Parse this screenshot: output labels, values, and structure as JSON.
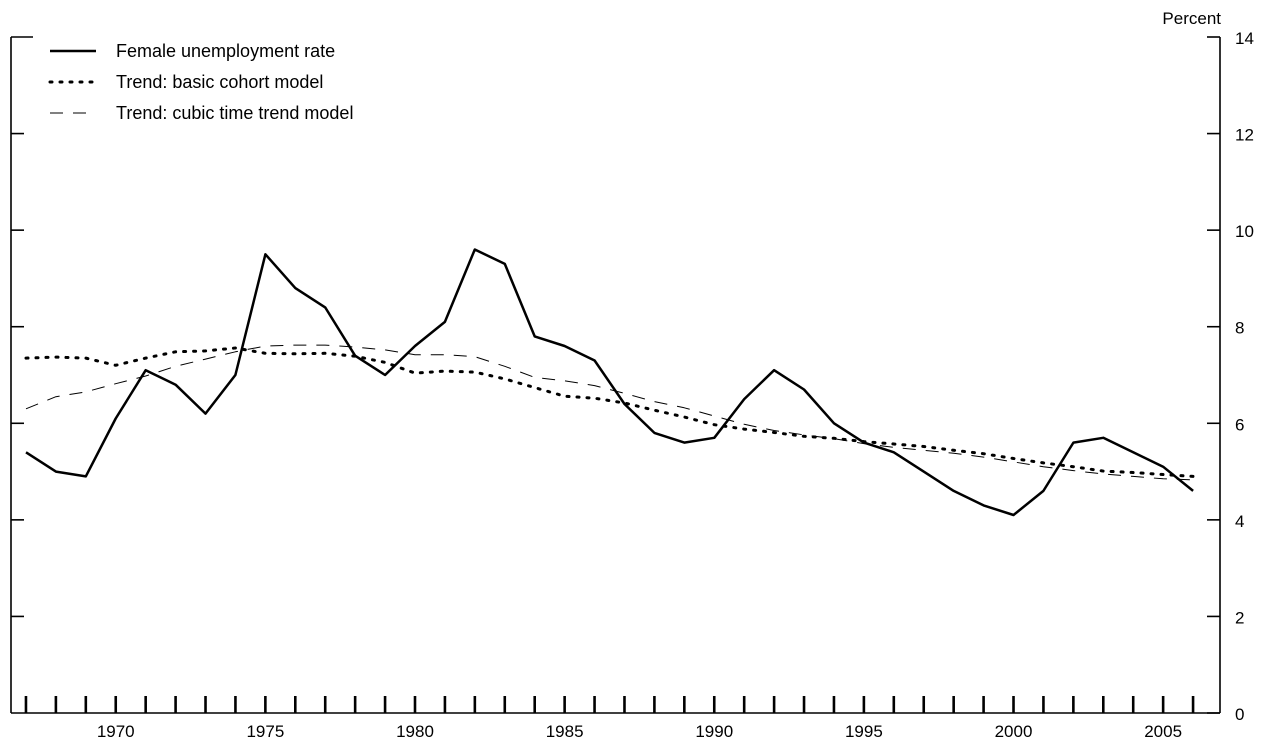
{
  "chart_data": {
    "type": "line",
    "title": "",
    "xlabel": "",
    "ylabel": "Percent",
    "xlim": [
      1966.5,
      2006.9
    ],
    "ylim": [
      0,
      14
    ],
    "grid": false,
    "legend_position": "top-left",
    "y_ticks": [
      0,
      2,
      4,
      6,
      8,
      10,
      12,
      14
    ],
    "y_tick_labels": [
      "0",
      "2",
      "4",
      "6",
      "8",
      "10",
      "12",
      "14"
    ],
    "x_tick_years": [
      1967,
      1968,
      1969,
      1970,
      1971,
      1972,
      1973,
      1974,
      1975,
      1976,
      1977,
      1978,
      1979,
      1980,
      1981,
      1982,
      1983,
      1984,
      1985,
      1986,
      1987,
      1988,
      1989,
      1990,
      1991,
      1992,
      1993,
      1994,
      1995,
      1996,
      1997,
      1998,
      1999,
      2000,
      2001,
      2002,
      2003,
      2004,
      2005,
      2006
    ],
    "x_labels": [
      {
        "year": 1970,
        "label": "1970"
      },
      {
        "year": 1975,
        "label": "1975"
      },
      {
        "year": 1980,
        "label": "1980"
      },
      {
        "year": 1985,
        "label": "1985"
      },
      {
        "year": 1990,
        "label": "1990"
      },
      {
        "year": 1995,
        "label": "1995"
      },
      {
        "year": 2000,
        "label": "2000"
      },
      {
        "year": 2005,
        "label": "2005"
      }
    ],
    "x": [
      1967,
      1968,
      1969,
      1970,
      1971,
      1972,
      1973,
      1974,
      1975,
      1976,
      1977,
      1978,
      1979,
      1980,
      1981,
      1982,
      1983,
      1984,
      1985,
      1986,
      1987,
      1988,
      1989,
      1990,
      1991,
      1992,
      1993,
      1994,
      1995,
      1996,
      1997,
      1998,
      1999,
      2000,
      2001,
      2002,
      2003,
      2004,
      2005,
      2006
    ],
    "series": [
      {
        "name": "Female unemployment rate",
        "style": "solid",
        "color": "#000000",
        "values": [
          5.4,
          5.0,
          4.9,
          6.1,
          7.1,
          6.8,
          6.2,
          7.0,
          9.5,
          8.8,
          8.4,
          7.4,
          7.0,
          7.6,
          8.1,
          9.6,
          9.3,
          7.8,
          7.6,
          7.3,
          6.4,
          5.8,
          5.6,
          5.7,
          6.5,
          7.1,
          6.7,
          6.0,
          5.6,
          5.4,
          5.0,
          4.6,
          4.3,
          4.1,
          4.6,
          5.6,
          5.7,
          5.4,
          5.1,
          4.6
        ]
      },
      {
        "name": "Trend: basic cohort model",
        "style": "dotted",
        "color": "#000000",
        "values": [
          7.35,
          7.37,
          7.35,
          7.2,
          7.35,
          7.48,
          7.5,
          7.56,
          7.45,
          7.44,
          7.45,
          7.39,
          7.26,
          7.04,
          7.08,
          7.06,
          6.92,
          6.74,
          6.56,
          6.52,
          6.42,
          6.27,
          6.13,
          5.97,
          5.88,
          5.81,
          5.73,
          5.69,
          5.62,
          5.57,
          5.52,
          5.44,
          5.37,
          5.27,
          5.18,
          5.1,
          5.01,
          4.98,
          4.94,
          4.9
        ]
      },
      {
        "name": "Trend: cubic time trend model",
        "style": "dashed",
        "color": "#000000",
        "values": [
          6.3,
          6.55,
          6.65,
          6.82,
          6.98,
          7.18,
          7.33,
          7.48,
          7.6,
          7.62,
          7.62,
          7.58,
          7.52,
          7.42,
          7.42,
          7.38,
          7.18,
          6.95,
          6.88,
          6.78,
          6.62,
          6.45,
          6.32,
          6.15,
          5.98,
          5.85,
          5.76,
          5.68,
          5.58,
          5.5,
          5.44,
          5.38,
          5.3,
          5.2,
          5.1,
          5.02,
          4.95,
          4.9,
          4.85,
          4.83
        ]
      }
    ]
  }
}
